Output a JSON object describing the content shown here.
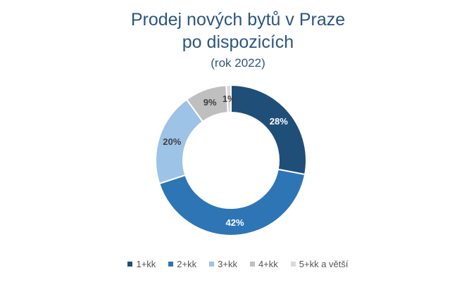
{
  "chart_data": {
    "type": "pie",
    "variant": "donut",
    "title_lines": [
      "Prodej nových bytů v Praze",
      "po dispozicích"
    ],
    "subtitle": "(rok 2022)",
    "categories": [
      "1+kk",
      "2+kk",
      "3+kk",
      "4+kk",
      "5+kk a větší"
    ],
    "values": [
      28,
      42,
      20,
      9,
      1
    ],
    "labels": [
      "28%",
      "42%",
      "20%",
      "9%",
      "1%"
    ],
    "colors": [
      "#1f4e79",
      "#2e75b6",
      "#9dc3e6",
      "#bfbfbf",
      "#d9d9d9"
    ],
    "label_colors": [
      "#ffffff",
      "#ffffff",
      "#404040",
      "#404040",
      "#404040"
    ],
    "legend_position": "bottom"
  }
}
